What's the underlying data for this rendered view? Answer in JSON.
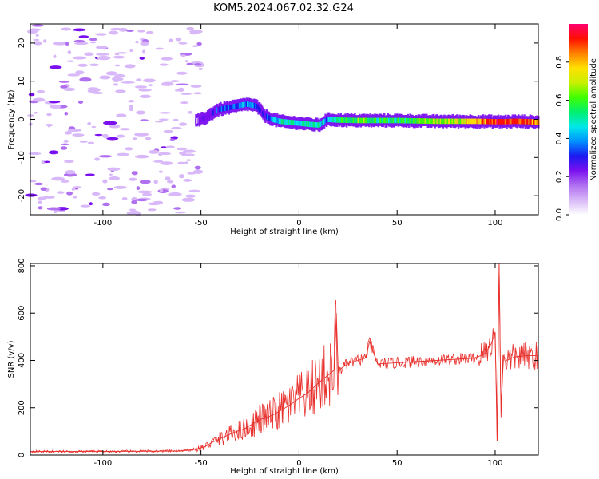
{
  "figure_title": "KOM5.2024.067.02.32.G24",
  "colors": {
    "snr_line": "#e8302c",
    "colormap": [
      "#ffffff",
      "#d8b8f8",
      "#b070f0",
      "#7a10f0",
      "#1a1af0",
      "#0090ff",
      "#00e8e8",
      "#00f070",
      "#40ff00",
      "#c8f000",
      "#ffe000",
      "#ff8000",
      "#ff1000",
      "#ff0070"
    ]
  },
  "chart_data": [
    {
      "type": "heatmap",
      "xlabel": "Height of straight line (km)",
      "ylabel": "Frequency (Hz)",
      "xlim": [
        -137,
        122
      ],
      "ylim": [
        -25,
        25
      ],
      "xticks": [
        -100,
        -50,
        0,
        50,
        100
      ],
      "yticks": [
        -20,
        -10,
        0,
        10,
        20
      ],
      "colorbar": {
        "label": "Normalized spectral amplitude",
        "range": [
          0,
          1
        ],
        "ticks": [
          0.0,
          0.2,
          0.4,
          0.6,
          0.8
        ]
      },
      "trace": {
        "x": [
          -53,
          -48,
          -42,
          -37,
          -32,
          -27,
          -22,
          -18,
          -14,
          -10,
          -5,
          0,
          5,
          10,
          14,
          20,
          30,
          40,
          50,
          60,
          70,
          80,
          90,
          100,
          105,
          110,
          122
        ],
        "y": [
          -0.5,
          0.5,
          2.5,
          3.0,
          3.5,
          4.0,
          3.5,
          1.0,
          0.0,
          -0.5,
          -0.8,
          -1.0,
          -1.3,
          -1.5,
          0.0,
          -0.2,
          -0.3,
          -0.3,
          -0.3,
          -0.4,
          -0.5,
          -0.5,
          -0.5,
          -0.6,
          -0.6,
          -0.5,
          -0.7
        ],
        "amplitude": [
          0.15,
          0.25,
          0.3,
          0.35,
          0.38,
          0.4,
          0.35,
          0.25,
          0.4,
          0.45,
          0.5,
          0.45,
          0.55,
          0.5,
          0.4,
          0.55,
          0.6,
          0.55,
          0.55,
          0.6,
          0.65,
          0.7,
          0.8,
          0.9,
          0.9,
          0.9,
          0.85
        ]
      },
      "noise_region_x": [
        -137,
        -50
      ]
    },
    {
      "type": "line",
      "xlabel": "Height of straight line (km)",
      "ylabel": "SNR (v/v)",
      "xlim": [
        -137,
        122
      ],
      "ylim": [
        0,
        810
      ],
      "xticks": [
        -100,
        -50,
        0,
        50,
        100
      ],
      "yticks": [
        0,
        200,
        400,
        600,
        800
      ],
      "series": [
        {
          "x": [
            -137,
            -120,
            -100,
            -80,
            -60,
            -52,
            -48,
            -44,
            -40,
            -36,
            -32,
            -28,
            -24,
            -20,
            -16,
            -12,
            -8,
            -4,
            0,
            4,
            8,
            12,
            16,
            18,
            19,
            20,
            22,
            26,
            30,
            34,
            36,
            40,
            50,
            60,
            70,
            80,
            90,
            95,
            98,
            100,
            101,
            102,
            103,
            104,
            106,
            110,
            116,
            122
          ],
          "y": [
            15,
            15,
            15,
            16,
            17,
            25,
            35,
            55,
            70,
            85,
            100,
            110,
            130,
            150,
            160,
            175,
            195,
            215,
            240,
            260,
            290,
            320,
            345,
            360,
            600,
            350,
            370,
            390,
            400,
            410,
            480,
            385,
            390,
            395,
            400,
            405,
            410,
            430,
            470,
            520,
            60,
            810,
            160,
            420,
            400,
            415,
            420,
            420
          ]
        }
      ]
    }
  ]
}
